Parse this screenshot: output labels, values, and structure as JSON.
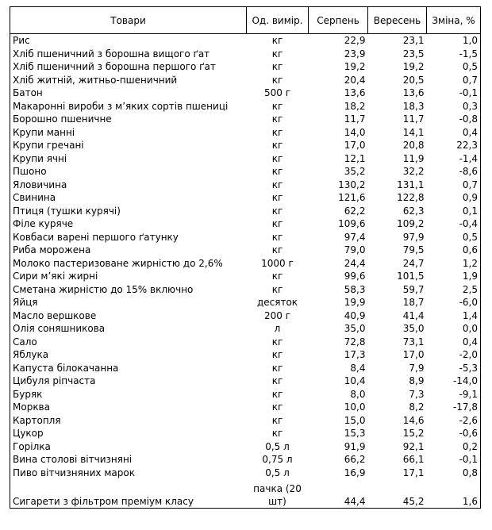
{
  "table": {
    "header": [
      "Товари",
      "Од. вимір.",
      "Серпень",
      "Вересень",
      "Зміна, %"
    ],
    "rows": [
      [
        "Рис",
        "кг",
        "22,9",
        "23,1",
        "1,0"
      ],
      [
        "Хліб пшеничний з борошна вищого ґат",
        "кг",
        "23,9",
        "23,5",
        "-1,5"
      ],
      [
        "Хліб пшеничний з борошна першого ґат",
        "кг",
        "19,2",
        "19,2",
        "0,5"
      ],
      [
        "Хліб житній, житньо-пшеничний",
        "кг",
        "20,4",
        "20,5",
        "0,7"
      ],
      [
        "Батон",
        "500 г",
        "13,6",
        "13,6",
        "-0,1"
      ],
      [
        "Макаронні вироби з м’яких сортів пшениці",
        "кг",
        "18,2",
        "18,3",
        "0,3"
      ],
      [
        "Борошно пшеничне",
        "кг",
        "11,7",
        "11,7",
        "-0,8"
      ],
      [
        "Крупи манні",
        "кг",
        "14,0",
        "14,1",
        "0,4"
      ],
      [
        "Крупи гречані",
        "кг",
        "17,0",
        "20,8",
        "22,3"
      ],
      [
        "Крупи ячні",
        "кг",
        "12,1",
        "11,9",
        "-1,4"
      ],
      [
        "Пшоно",
        "кг",
        "35,2",
        "32,2",
        "-8,6"
      ],
      [
        "Яловичина",
        "кг",
        "130,2",
        "131,1",
        "0,7"
      ],
      [
        "Свинина",
        "кг",
        "121,6",
        "122,8",
        "0,9"
      ],
      [
        "Птиця (тушки курячі)",
        "кг",
        "62,2",
        "62,3",
        "0,1"
      ],
      [
        "Філе куряче",
        "кг",
        "109,6",
        "109,2",
        "-0,4"
      ],
      [
        "Ковбаси варені першого ґатунку",
        "кг",
        "97,4",
        "97,9",
        "0,5"
      ],
      [
        "Риба морожена",
        "кг",
        "79,0",
        "79,5",
        "0,6"
      ],
      [
        "Молоко пастеризоване жирністю до 2,6%",
        "1000 г",
        "24,4",
        "24,7",
        "1,2"
      ],
      [
        "Сири м’які жирні",
        "кг",
        "99,6",
        "101,5",
        "1,9"
      ],
      [
        "Сметана жирністю до 15% включно",
        "кг",
        "58,3",
        "59,7",
        "2,5"
      ],
      [
        "Яйця",
        "десяток",
        "19,9",
        "18,7",
        "-6,0"
      ],
      [
        "Масло вершкове",
        "200 г",
        "40,9",
        "41,4",
        "1,4"
      ],
      [
        "Олія соняшникова",
        "л",
        "35,0",
        "35,0",
        "0,0"
      ],
      [
        "Сало",
        "кг",
        "72,8",
        "73,1",
        "0,4"
      ],
      [
        "Яблука",
        "кг",
        "17,3",
        "17,0",
        "-2,0"
      ],
      [
        "Капуста білокачанна",
        "кг",
        "8,4",
        "7,9",
        "-5,3"
      ],
      [
        "Цибуля ріпчаста",
        "кг",
        "10,4",
        "8,9",
        "-14,0"
      ],
      [
        "Буряк",
        "кг",
        "8,0",
        "7,3",
        "-9,1"
      ],
      [
        "Морква",
        "кг",
        "10,0",
        "8,2",
        "-17,8"
      ],
      [
        "Картопля",
        "кг",
        "15,0",
        "14,6",
        "-2,6"
      ],
      [
        "Цукор",
        "кг",
        "15,3",
        "15,2",
        "-0,6"
      ],
      [
        "Горілка",
        "0,5 л",
        "91,9",
        "92,1",
        "0,2"
      ],
      [
        "Вина столові вітчизняні",
        "0,75 л",
        "66,2",
        "66,1",
        "-0,1"
      ],
      [
        "Пиво вітчизняних марок",
        "0,5 л",
        "16,9",
        "17,1",
        "0,8"
      ],
      [
        "Сигарети з фільтром преміум класу",
        "пачка (20 шт)",
        "44,4",
        "45,2",
        "1,6"
      ]
    ]
  }
}
